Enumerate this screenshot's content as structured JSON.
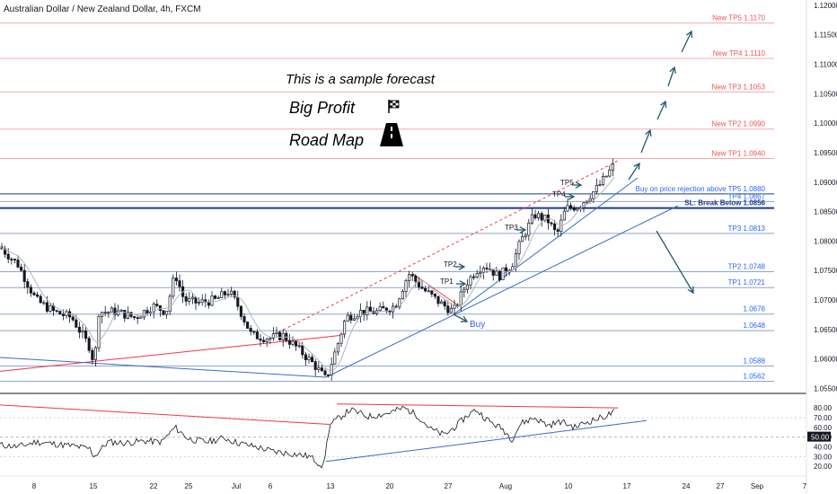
{
  "header": {
    "title": "Australian Dollar / New Zealand Dollar, 4h, FXCM"
  },
  "annotations": {
    "forecast_note": "This is a sample forecast",
    "big_profit": "Big Profit",
    "road_map": "Road Map",
    "buy_label": "Buy",
    "tp1": "TP1",
    "tp2": "TP2",
    "tp3": "TP3",
    "tp4": "TP4",
    "tp5": "TP5"
  },
  "colors": {
    "candle": "#131722",
    "target_line": "#f7a9a9",
    "target_text": "#ef5350",
    "support_line": "#90a4c8",
    "support_text": "#2962ff",
    "trendline_red": "#f23645",
    "trendline_blue": "#3a6bc7",
    "arrow": "#26596b",
    "ma_line": "#b2b5be"
  },
  "chart_data": [
    {
      "type": "candlestick",
      "title": "Australian Dollar / New Zealand Dollar, 4h, FXCM",
      "ylim": [
        1.0543,
        1.1209
      ],
      "x_ticks": [
        "8",
        "15",
        "22",
        "25",
        "Jul",
        "6",
        "13",
        "20",
        "27",
        "Aug",
        "10",
        "17",
        "24",
        "27",
        "Sep",
        "7"
      ],
      "y_ticks": [
        1.055,
        1.06,
        1.065,
        1.07,
        1.075,
        1.08,
        1.085,
        1.09,
        1.095,
        1.1,
        1.105,
        1.11,
        1.115,
        1.12
      ],
      "price_path": [
        [
          0,
          1.079
        ],
        [
          20,
          1.076
        ],
        [
          40,
          1.07
        ],
        [
          60,
          1.068
        ],
        [
          80,
          1.067
        ],
        [
          100,
          1.062
        ],
        [
          105,
          1.059
        ],
        [
          110,
          1.068
        ],
        [
          130,
          1.068
        ],
        [
          150,
          1.067
        ],
        [
          170,
          1.069
        ],
        [
          185,
          1.068
        ],
        [
          195,
          1.0745
        ],
        [
          205,
          1.07
        ],
        [
          220,
          1.0695
        ],
        [
          240,
          1.07
        ],
        [
          255,
          1.0715
        ],
        [
          265,
          1.069
        ],
        [
          280,
          1.064
        ],
        [
          300,
          1.0635
        ],
        [
          315,
          1.064
        ],
        [
          330,
          1.062
        ],
        [
          350,
          1.059
        ],
        [
          363,
          1.0565
        ],
        [
          375,
          1.062
        ],
        [
          385,
          1.067
        ],
        [
          400,
          1.068
        ],
        [
          420,
          1.068
        ],
        [
          440,
          1.069
        ],
        [
          455,
          1.0745
        ],
        [
          470,
          1.072
        ],
        [
          490,
          1.0695
        ],
        [
          505,
          1.068
        ],
        [
          520,
          1.073
        ],
        [
          530,
          1.075
        ],
        [
          540,
          1.076
        ],
        [
          555,
          1.074
        ],
        [
          570,
          1.076
        ],
        [
          580,
          1.08
        ],
        [
          595,
          1.0845
        ],
        [
          610,
          1.0835
        ],
        [
          620,
          1.081
        ],
        [
          630,
          1.0855
        ],
        [
          645,
          1.086
        ],
        [
          655,
          1.0875
        ],
        [
          665,
          1.089
        ],
        [
          675,
          1.091
        ],
        [
          684,
          1.093
        ]
      ],
      "levels": [
        {
          "label": "New TP5",
          "value": 1.117,
          "kind": "target"
        },
        {
          "label": "New TP4",
          "value": 1.111,
          "kind": "target"
        },
        {
          "label": "New TP3",
          "value": 1.1053,
          "kind": "target"
        },
        {
          "label": "New TP2",
          "value": 1.099,
          "kind": "target"
        },
        {
          "label": "New TP1",
          "value": 1.094,
          "kind": "target"
        },
        {
          "label": "Buy on price rejection above TP5",
          "value": 1.088,
          "kind": "entry"
        },
        {
          "label": "TP4",
          "value": 1.0867,
          "kind": "support"
        },
        {
          "label": "SL: Break Below",
          "value": 1.0856,
          "kind": "stop"
        },
        {
          "label": "TP3",
          "value": 1.0813,
          "kind": "support"
        },
        {
          "label": "TP2",
          "value": 1.0748,
          "kind": "support"
        },
        {
          "label": "TP1",
          "value": 1.0721,
          "kind": "support"
        },
        {
          "label": "",
          "value": 1.0676,
          "kind": "support"
        },
        {
          "label": "",
          "value": 1.0648,
          "kind": "support"
        },
        {
          "label": "",
          "value": 1.0588,
          "kind": "support"
        },
        {
          "label": "",
          "value": 1.0562,
          "kind": "support"
        }
      ],
      "level_labels": [
        "New TP5 1.1170",
        "New TP4 1.1110",
        "New TP3 1.1053",
        "New TP2 1.0990",
        "New TP1 1.0940",
        "Buy on price rejection above TP5 1.0880",
        "TP4 1.0867",
        "SL: Break Below 1.0856",
        "TP3 1.0813",
        "TP2 1.0748",
        "TP1 1.0721",
        "1.0676",
        "1.0648",
        "1.0588",
        "1.0562"
      ]
    },
    {
      "type": "line",
      "ylim": [
        10,
        93
      ],
      "y_ticks": [
        20.0,
        30.0,
        40.0,
        50.0,
        60.0,
        70.0,
        80.0
      ],
      "y_tick_labels": [
        "20.00",
        "30.00",
        "40.00",
        "50.00",
        "60.00",
        "70.00",
        "80.00"
      ],
      "current_value": "50.00",
      "path": [
        [
          0,
          42
        ],
        [
          20,
          40
        ],
        [
          40,
          45
        ],
        [
          60,
          43
        ],
        [
          80,
          41
        ],
        [
          100,
          38
        ],
        [
          105,
          30
        ],
        [
          120,
          45
        ],
        [
          140,
          44
        ],
        [
          160,
          46
        ],
        [
          180,
          45
        ],
        [
          195,
          60
        ],
        [
          210,
          48
        ],
        [
          230,
          45
        ],
        [
          250,
          49
        ],
        [
          265,
          44
        ],
        [
          285,
          40
        ],
        [
          305,
          35
        ],
        [
          325,
          33
        ],
        [
          345,
          30
        ],
        [
          360,
          20
        ],
        [
          367,
          62
        ],
        [
          375,
          68
        ],
        [
          390,
          78
        ],
        [
          410,
          71
        ],
        [
          430,
          74
        ],
        [
          450,
          80
        ],
        [
          465,
          72
        ],
        [
          480,
          58
        ],
        [
          495,
          52
        ],
        [
          510,
          63
        ],
        [
          520,
          72
        ],
        [
          530,
          78
        ],
        [
          545,
          66
        ],
        [
          560,
          58
        ],
        [
          570,
          48
        ],
        [
          580,
          64
        ],
        [
          595,
          70
        ],
        [
          610,
          62
        ],
        [
          625,
          66
        ],
        [
          640,
          60
        ],
        [
          655,
          66
        ],
        [
          670,
          70
        ],
        [
          685,
          76
        ]
      ]
    }
  ]
}
